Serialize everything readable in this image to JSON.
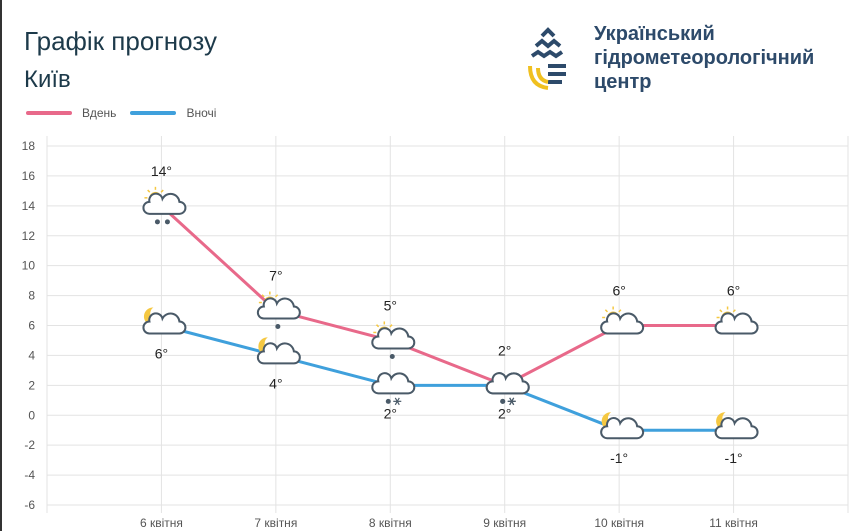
{
  "header": {
    "title": "Графік прогнозу",
    "city": "Київ",
    "org_lines": [
      "Український",
      "гідрометеорологічний",
      "центр"
    ]
  },
  "colors": {
    "day": "#e8698a",
    "night": "#3fa0dc",
    "grid": "#e3e3e3",
    "title": "#1d3a4a"
  },
  "chart_data": {
    "type": "line",
    "categories": [
      "6 квітня",
      "7 квітня",
      "8 квітня",
      "9 квітня",
      "10 квітня",
      "11 квітня"
    ],
    "series": [
      {
        "name": "Вдень",
        "values": [
          14,
          7,
          5,
          2,
          6,
          6
        ],
        "labels": [
          "14°",
          "7°",
          "5°",
          "2°",
          "6°",
          "6°"
        ],
        "icons": [
          "sun-cloud-rain-heavy",
          "sun-cloud-rain",
          "sun-cloud-rain",
          "cloud-rain-snow",
          "sun-cloud",
          "sun-cloud"
        ]
      },
      {
        "name": "Вночі",
        "values": [
          6,
          4,
          2,
          2,
          -1,
          -1
        ],
        "labels": [
          "6°",
          "4°",
          "2°",
          "2°",
          "-1°",
          "-1°"
        ],
        "icons": [
          "moon-cloud",
          "moon-cloud",
          "cloud-rain-snow",
          "cloud-rain-snow",
          "moon-cloud",
          "moon-cloud"
        ]
      }
    ],
    "ylim": [
      -6,
      18
    ],
    "yticks": [
      -6,
      -4,
      -2,
      0,
      2,
      4,
      6,
      8,
      10,
      12,
      14,
      16,
      18
    ],
    "grid": true,
    "legend": "top-left"
  }
}
